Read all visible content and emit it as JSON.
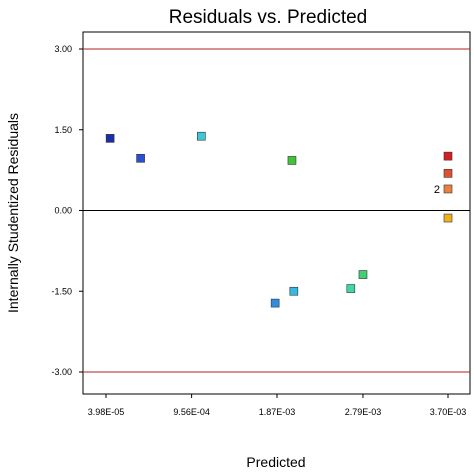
{
  "chart_data": {
    "type": "scatter",
    "title": "Residuals vs. Predicted",
    "xlabel": "Predicted",
    "ylabel": "Internally Studentized Residuals",
    "xlim": [
      3.98e-05,
      0.0037
    ],
    "ylim": [
      -3.0,
      3.0
    ],
    "x_ticks": [
      3.98e-05,
      0.000956,
      0.00187,
      0.00279,
      0.0037
    ],
    "x_tick_labels": [
      "3.98E-05",
      "9.56E-04",
      "1.87E-03",
      "2.79E-03",
      "3.70E-03"
    ],
    "y_ticks": [
      3.0,
      1.5,
      0.0,
      -1.5,
      -3.0
    ],
    "y_tick_labels": [
      "3.00",
      "1.50",
      "0.00",
      "-1.50",
      "-3.00"
    ],
    "limit_lines": [
      3.0,
      -3.0
    ],
    "limit_line_color": "#b22222",
    "zero_line_color": "#000000",
    "grid": false,
    "points": [
      {
        "x": 8.39e-05,
        "y": 1.34,
        "color": "#1a2ea8"
      },
      {
        "x": 0.00041,
        "y": 0.97,
        "color": "#2b4fd0"
      },
      {
        "x": 0.00106,
        "y": 1.38,
        "color": "#3cc7d8"
      },
      {
        "x": 0.00203,
        "y": 0.93,
        "color": "#3fc43a"
      },
      {
        "x": 0.00185,
        "y": -1.72,
        "color": "#2e8fe0"
      },
      {
        "x": 0.00205,
        "y": -1.5,
        "color": "#35b8e2"
      },
      {
        "x": 0.00266,
        "y": -1.45,
        "color": "#3cd9a0"
      },
      {
        "x": 0.00279,
        "y": -1.19,
        "color": "#40d070"
      },
      {
        "x": 0.0037,
        "y": 1.01,
        "color": "#d42020"
      },
      {
        "x": 0.0037,
        "y": 0.69,
        "color": "#e05030"
      },
      {
        "x": 0.0037,
        "y": 0.4,
        "color": "#e88040",
        "label": "2"
      },
      {
        "x": 0.0037,
        "y": -0.14,
        "color": "#f0b020"
      }
    ]
  }
}
